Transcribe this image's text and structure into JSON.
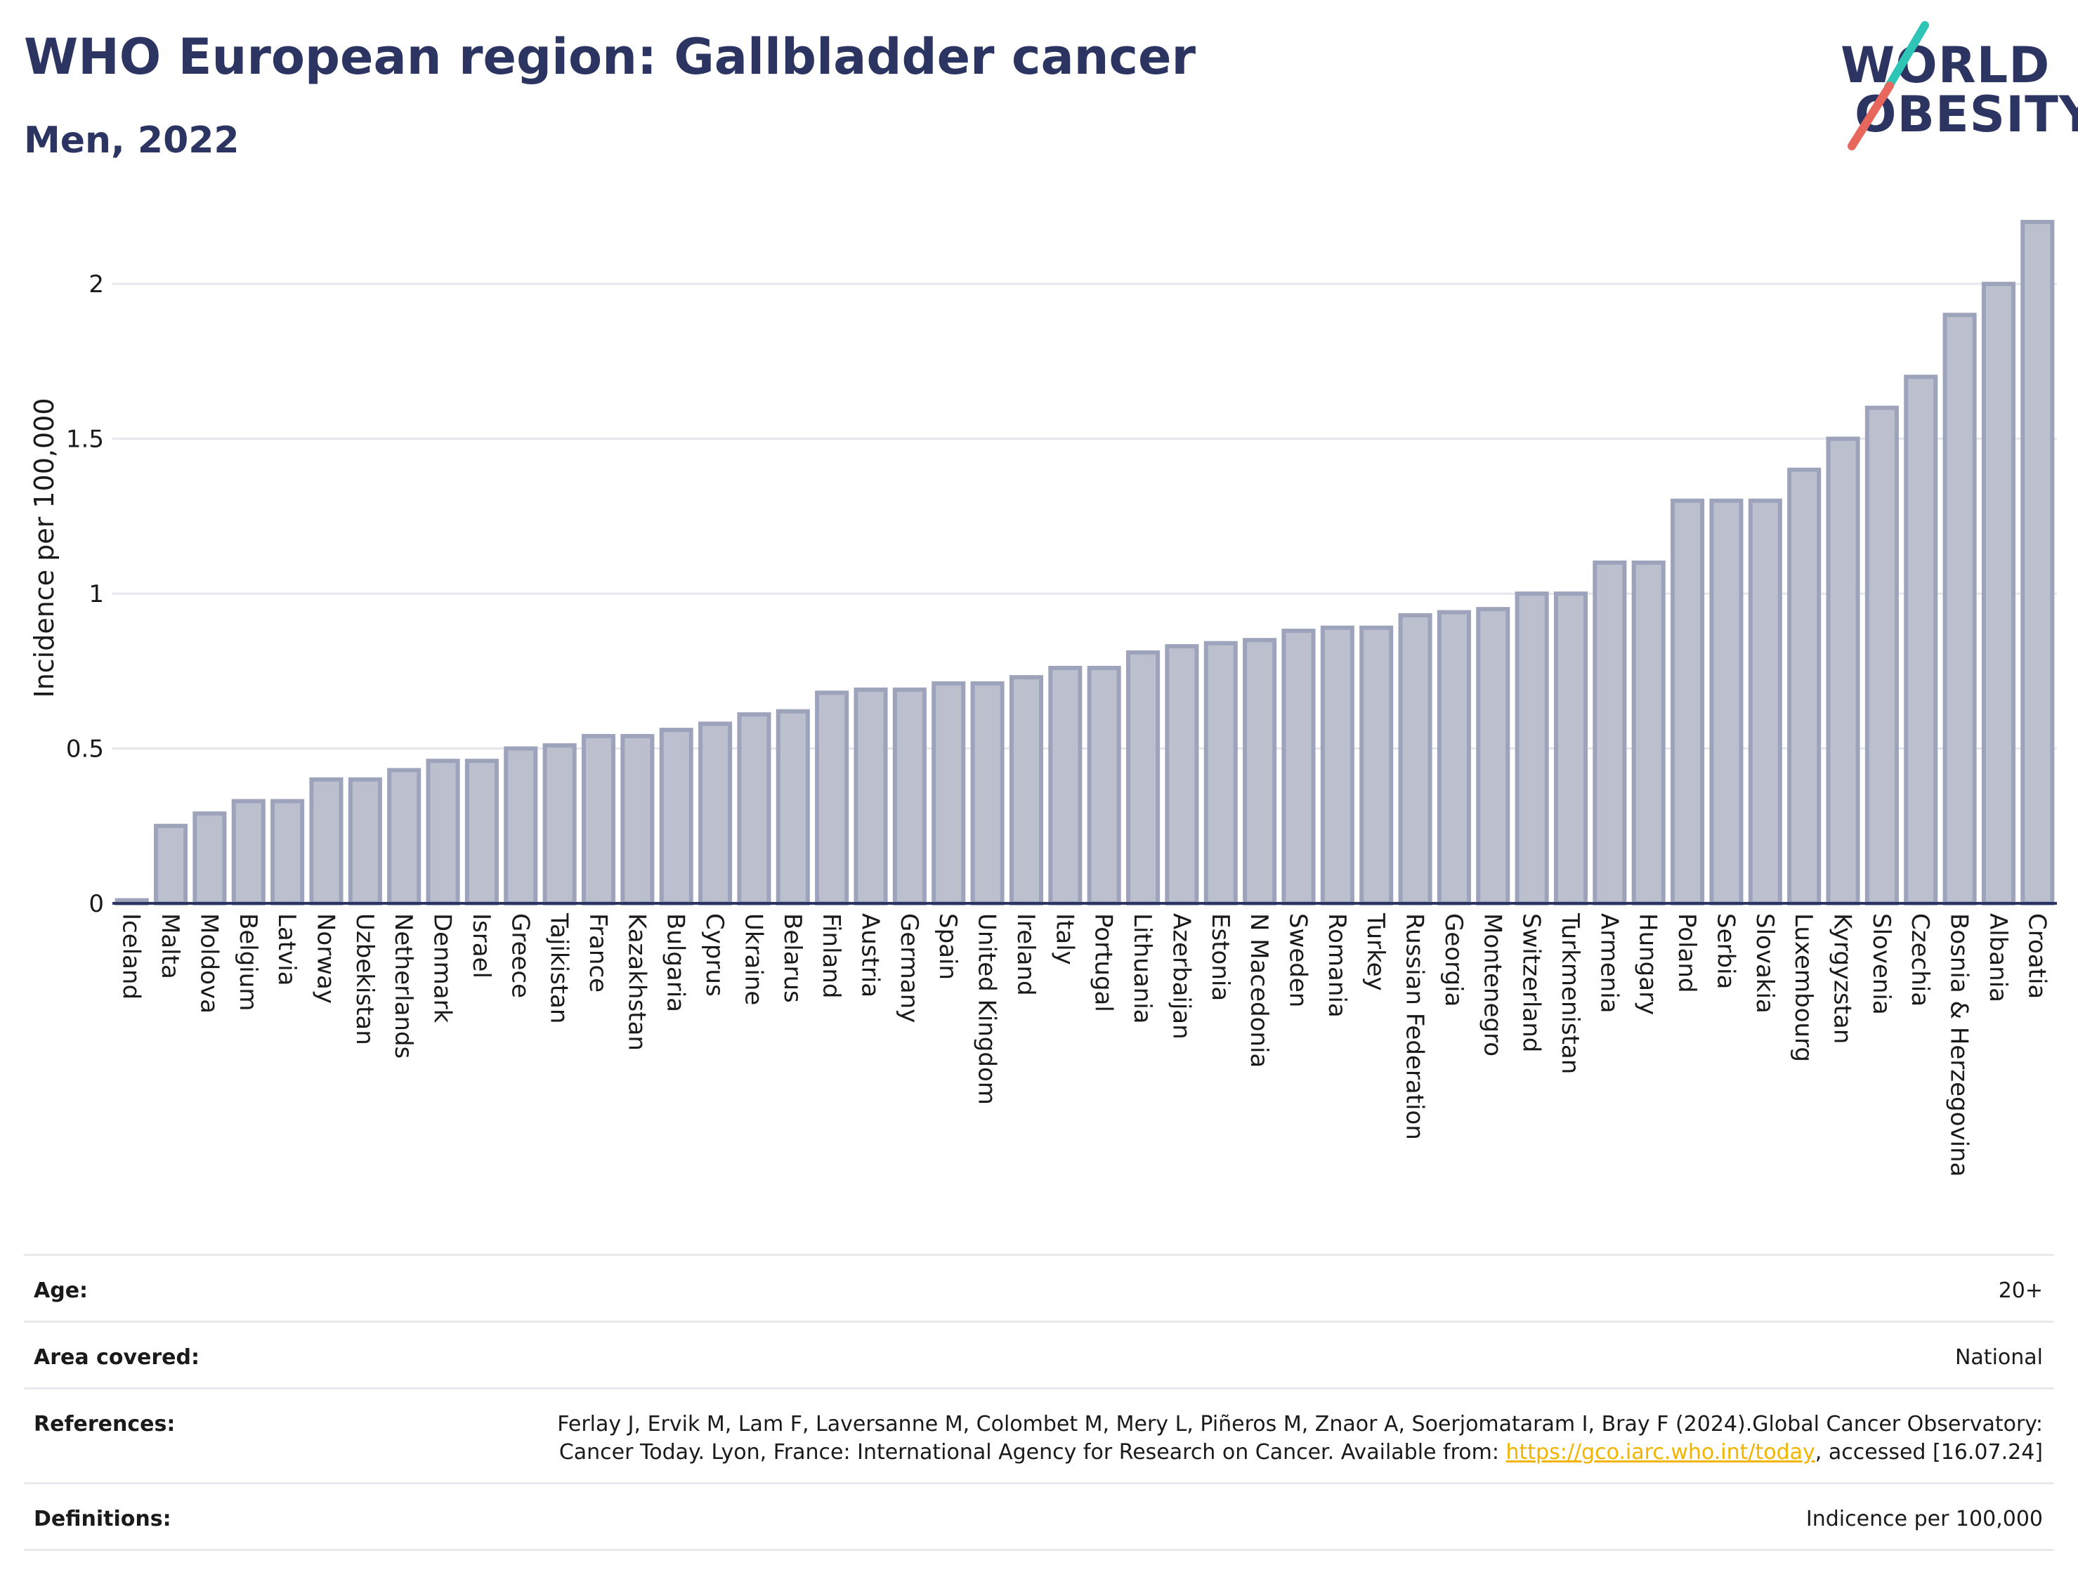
{
  "title": "WHO European region: Gallbladder cancer",
  "subtitle": "Men, 2022",
  "logo": {
    "line1": "WORLD",
    "line2": "OBESITY",
    "slash_colors": [
      "#2ec4b6",
      "#e8675c"
    ]
  },
  "colors": {
    "bar_fill": "#bcc0ce",
    "bar_stroke": "#9da3ba",
    "axis": "#2c3561",
    "grid": "#e6e6ec",
    "title": "#2c3561",
    "link": "#f2b400"
  },
  "chart_data": {
    "type": "bar",
    "ylabel": "Incidence per 100,000",
    "xlabel": "",
    "ylim": [
      0,
      2.2
    ],
    "yticks": [
      0,
      0.5,
      1,
      1.5,
      2
    ],
    "ytick_labels": [
      "0",
      "0.5",
      "1",
      "1.5",
      "2"
    ],
    "grid": true,
    "categories": [
      "Iceland",
      "Malta",
      "Moldova",
      "Belgium",
      "Latvia",
      "Norway",
      "Uzbekistan",
      "Netherlands",
      "Denmark",
      "Israel",
      "Greece",
      "Tajikistan",
      "France",
      "Kazakhstan",
      "Bulgaria",
      "Cyprus",
      "Ukraine",
      "Belarus",
      "Finland",
      "Austria",
      "Germany",
      "Spain",
      "United Kingdom",
      "Ireland",
      "Italy",
      "Portugal",
      "Lithuania",
      "Azerbaijan",
      "Estonia",
      "N Macedonia",
      "Sweden",
      "Romania",
      "Turkey",
      "Russian Federation",
      "Georgia",
      "Montenegro",
      "Switzerland",
      "Turkmenistan",
      "Armenia",
      "Hungary",
      "Poland",
      "Serbia",
      "Slovakia",
      "Luxembourg",
      "Kyrgyzstan",
      "Slovenia",
      "Czechia",
      "Bosnia & Herzegovina",
      "Albania",
      "Croatia"
    ],
    "values": [
      0.01,
      0.25,
      0.29,
      0.33,
      0.33,
      0.4,
      0.4,
      0.43,
      0.46,
      0.46,
      0.5,
      0.51,
      0.54,
      0.54,
      0.56,
      0.58,
      0.61,
      0.62,
      0.68,
      0.69,
      0.69,
      0.71,
      0.71,
      0.73,
      0.76,
      0.76,
      0.81,
      0.83,
      0.84,
      0.85,
      0.88,
      0.89,
      0.89,
      0.93,
      0.94,
      0.95,
      1.0,
      1.0,
      1.1,
      1.1,
      1.3,
      1.3,
      1.3,
      1.4,
      1.5,
      1.6,
      1.7,
      1.9,
      2.0,
      2.2
    ]
  },
  "info": [
    {
      "label": "Age:",
      "value": "20+"
    },
    {
      "label": "Area covered:",
      "value": "National"
    },
    {
      "label": "References:",
      "value_pre": "Ferlay J, Ervik M, Lam F, Laversanne M, Colombet M, Mery L, Piñeros M, Znaor A, Soerjomataram I, Bray F (2024).Global Cancer Observatory: Cancer Today. Lyon, France: International Agency for Research on Cancer. Available from: ",
      "link": "https://gco.iarc.who.int/today",
      "value_post": ", accessed [16.07.24]"
    },
    {
      "label": "Definitions:",
      "value": "Indicence per 100,000"
    }
  ]
}
